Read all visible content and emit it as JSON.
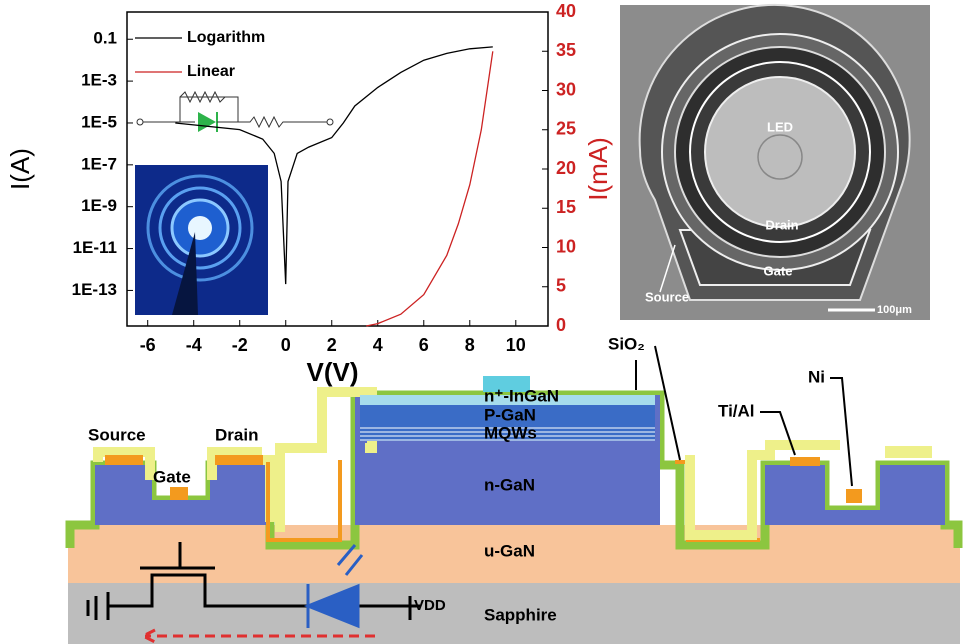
{
  "chart_data": {
    "type": "line",
    "xlabel": "V(V)",
    "ylabel": "I(A)",
    "y2label": "I(mA)",
    "xlim": [
      -6.9,
      11.4
    ],
    "xticks": [
      -6,
      -4,
      -2,
      0,
      2,
      4,
      6,
      8,
      10
    ],
    "ylim": [
      2e-15,
      2
    ],
    "yscale": "log",
    "yticks": [
      0.1,
      {
        "value": 0.001,
        "label": "1E-3"
      },
      {
        "value": 1e-05,
        "label": "1E-5"
      },
      {
        "value": 1e-07,
        "label": "1E-7"
      },
      {
        "value": 1e-09,
        "label": "1E-9"
      },
      {
        "value": 1e-11,
        "label": "1E-11"
      },
      {
        "value": 1e-13,
        "label": "1E-13"
      }
    ],
    "y2lim": [
      0,
      40
    ],
    "y2ticks": [
      0,
      5,
      10,
      15,
      20,
      25,
      30,
      35,
      40
    ],
    "legend": "upper left",
    "series": [
      {
        "name": "Logarithm",
        "color": "#000000",
        "axis": "y",
        "x": [
          -4.8,
          -2,
          -1,
          -0.5,
          -0.2,
          0,
          0.1,
          0.5,
          1,
          2,
          2.5,
          3,
          4,
          5,
          6,
          7,
          8,
          9
        ],
        "values": [
          1e-05,
          4.8e-06,
          1.7e-06,
          3.5e-07,
          1.6e-08,
          2e-13,
          1.6e-08,
          3.5e-07,
          7e-07,
          2e-06,
          1e-05,
          6.5e-05,
          0.0005,
          0.0026,
          0.01,
          0.021,
          0.035,
          0.043
        ]
      },
      {
        "name": "Linear",
        "color": "#cc2222",
        "axis": "y2",
        "x": [
          3.5,
          4,
          5,
          6,
          7,
          7.5,
          8,
          8.5,
          9
        ],
        "values": [
          0,
          0.3,
          1.5,
          4,
          9,
          13,
          18,
          25,
          35
        ]
      }
    ]
  },
  "sem_image": {
    "led": "LED",
    "drain": "Drain",
    "gate": "Gate",
    "source": "Source",
    "scale": "100μm"
  },
  "cross_section": {
    "n_ingan": "n⁺-InGaN",
    "p_gan": "P-GaN",
    "mqws": "MQWs",
    "n_gan": "n-GaN",
    "u_gan": "u-GaN",
    "sapphire": "Sapphire",
    "source": "Source",
    "drain": "Drain",
    "gate": "Gate",
    "sio2": "SiO₂",
    "tial": "Ti/Al",
    "ni": "Ni",
    "vdd": "VDD"
  }
}
